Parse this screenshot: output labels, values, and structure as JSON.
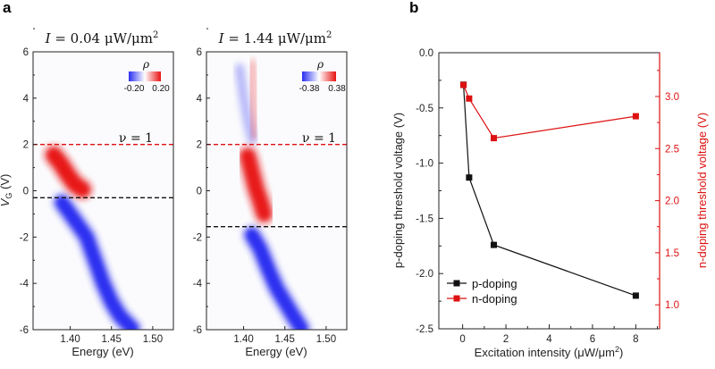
{
  "panel_labels": {
    "a": "a",
    "b": "b"
  },
  "colors": {
    "black": "#111111",
    "red": "#dd1111",
    "map_neg": "#2a2ef0",
    "map_pos": "#e81212"
  },
  "chart_data": [
    {
      "type": "heatmap",
      "title_var": "I",
      "title_eq": " =  0.04 μW/μm",
      "title_sup": "2",
      "xlabel": "Energy (eV)",
      "ylabel": "V",
      "ylabel_sub": "G",
      "ylabel_unit": " (V)",
      "xlim": [
        1.355,
        1.525
      ],
      "ylim": [
        -6,
        6
      ],
      "xticks": [
        1.4,
        1.45,
        1.5
      ],
      "xtick_labels": [
        "1.40",
        "1.45",
        "1.50"
      ],
      "yticks": [
        -6,
        -4,
        -2,
        0,
        2,
        4,
        6
      ],
      "ytick_labels": [
        "-6",
        "-4",
        "-2",
        "0",
        "2",
        "4",
        "6"
      ],
      "colorbar": {
        "label": "ρ",
        "min_label": "-0.20",
        "max_label": "0.20",
        "min": -0.2,
        "max": 0.2
      },
      "annotation": "ν = 1",
      "hlines": [
        {
          "y": 2.0,
          "color": "red"
        },
        {
          "y": -0.3,
          "color": "black"
        }
      ],
      "features": [
        {
          "kind": "neg_band",
          "points": [
            [
              1.39,
              -0.5
            ],
            [
              1.4,
              -1.0
            ],
            [
              1.42,
              -2.0
            ],
            [
              1.43,
              -3.0
            ],
            [
              1.44,
              -4.0
            ],
            [
              1.45,
              -4.8
            ],
            [
              1.46,
              -5.4
            ],
            [
              1.475,
              -5.95
            ]
          ],
          "strength": 0.95
        },
        {
          "kind": "pos_blob",
          "points": [
            [
              1.38,
              1.55
            ],
            [
              1.39,
              1.1
            ],
            [
              1.395,
              0.8
            ],
            [
              1.405,
              0.3
            ],
            [
              1.415,
              0.05
            ]
          ],
          "strength": 0.95
        },
        {
          "kind": "pos_line",
          "points": [
            [
              1.36,
              0.0
            ],
            [
              1.42,
              0.0
            ]
          ],
          "strength": 0.6
        }
      ]
    },
    {
      "type": "heatmap",
      "title_var": "I",
      "title_eq": " = 1.44 μW/μm",
      "title_sup": "2",
      "xlabel": "Energy (eV)",
      "ylabel": "",
      "xlim": [
        1.355,
        1.525
      ],
      "ylim": [
        -6,
        6
      ],
      "xticks": [
        1.4,
        1.45,
        1.5
      ],
      "xtick_labels": [
        "1.40",
        "1.45",
        "1.50"
      ],
      "yticks": [
        -6,
        -4,
        -2,
        0,
        2,
        4,
        6
      ],
      "ytick_labels": [
        "-6",
        "-4",
        "-2",
        "0",
        "2",
        "4",
        "6"
      ],
      "colorbar": {
        "label": "ρ",
        "min_label": "-0.38",
        "max_label": "0.38",
        "min": -0.38,
        "max": 0.38
      },
      "annotation": "ν = 1",
      "hlines": [
        {
          "y": 2.0,
          "color": "red"
        },
        {
          "y": -1.55,
          "color": "black"
        }
      ],
      "features": [
        {
          "kind": "neg_band",
          "points": [
            [
              1.41,
              -1.9
            ],
            [
              1.42,
              -2.5
            ],
            [
              1.43,
              -3.4
            ],
            [
              1.44,
              -4.2
            ],
            [
              1.45,
              -4.8
            ],
            [
              1.46,
              -5.4
            ],
            [
              1.47,
              -5.95
            ]
          ],
          "strength": 0.95
        },
        {
          "kind": "neg_faint",
          "points": [
            [
              1.395,
              5.3
            ],
            [
              1.4,
              4.0
            ],
            [
              1.405,
              3.0
            ],
            [
              1.41,
              2.2
            ]
          ],
          "strength": 0.35
        },
        {
          "kind": "pos_blob",
          "points": [
            [
              1.405,
              1.5
            ],
            [
              1.41,
              0.8
            ],
            [
              1.415,
              0.1
            ],
            [
              1.42,
              -0.4
            ],
            [
              1.425,
              -1.0
            ]
          ],
          "strength": 0.9
        },
        {
          "kind": "pos_line",
          "points": [
            [
              1.36,
              -0.15
            ],
            [
              1.44,
              -0.15
            ]
          ],
          "strength": 0.45
        },
        {
          "kind": "pos_faint",
          "points": [
            [
              1.41,
              5.5
            ],
            [
              1.412,
              3.5
            ],
            [
              1.414,
              2.4
            ]
          ],
          "strength": 0.3
        }
      ]
    },
    {
      "type": "line",
      "xlabel": "Excitation intensity (μW/μm",
      "xlabel_sup": "2",
      "xlabel_end": ")",
      "ylabel_left": "p-doping threshold voltage (V)",
      "ylabel_right": "n-doping threshold voltage (V)",
      "xlim": [
        -1.1,
        9.1
      ],
      "ylim_left": [
        -2.5,
        0.0
      ],
      "ylim_right": [
        0.77,
        3.42
      ],
      "xticks": [
        0,
        2,
        4,
        6,
        8
      ],
      "xtick_labels": [
        "0",
        "2",
        "4",
        "6",
        "8"
      ],
      "yticks_left": [
        -2.5,
        -2.0,
        -1.5,
        -1.0,
        -0.5,
        0.0
      ],
      "ytick_labels_left": [
        "-2.5",
        "-2.0",
        "-1.5",
        "-1.0",
        "-0.5",
        "0.0"
      ],
      "yticks_right": [
        1.0,
        1.5,
        2.0,
        2.5,
        3.0
      ],
      "ytick_labels_right": [
        "1.0",
        "1.5",
        "2.0",
        "2.5",
        "3.0"
      ],
      "legend": {
        "position": "lower-left",
        "entries": [
          "p-doping",
          "n-doping"
        ]
      },
      "series": [
        {
          "name": "p-doping",
          "axis": "left",
          "color": "black",
          "x": [
            0.04,
            0.3,
            1.44,
            8.0
          ],
          "values": [
            -0.29,
            -1.13,
            -1.74,
            -2.2
          ]
        },
        {
          "name": "n-doping",
          "axis": "right",
          "color": "red",
          "x": [
            0.04,
            0.3,
            1.44,
            8.0
          ],
          "values": [
            3.11,
            2.98,
            2.6,
            2.81
          ]
        }
      ]
    }
  ]
}
